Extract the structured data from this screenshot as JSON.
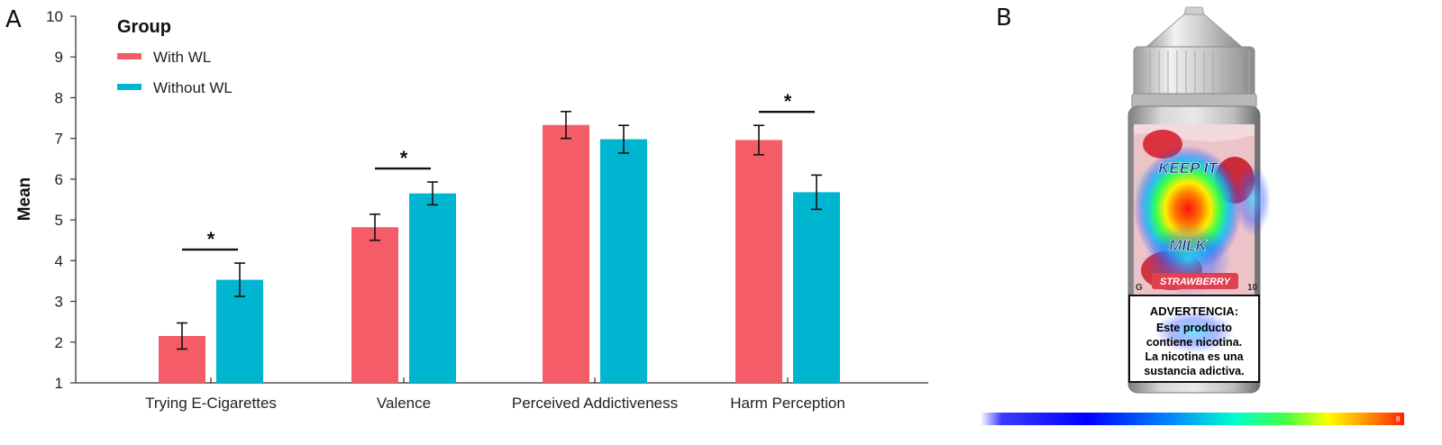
{
  "panels": {
    "a": "A",
    "b": "B"
  },
  "chart_data": {
    "type": "bar",
    "categories": [
      "Trying E-Cigarettes",
      "Valence",
      "Perceived Addictiveness",
      "Harm Perception"
    ],
    "series": [
      {
        "name": "With WL",
        "color": "#f45d68",
        "values": [
          2.15,
          4.82,
          7.33,
          6.96
        ],
        "error": [
          0.32,
          0.32,
          0.33,
          0.36
        ]
      },
      {
        "name": "Without WL",
        "color": "#00b5cf",
        "values": [
          3.53,
          5.65,
          6.98,
          5.68
        ],
        "error": [
          0.41,
          0.28,
          0.34,
          0.42
        ]
      }
    ],
    "significance": [
      {
        "category": "Trying E-Cigarettes",
        "label": "*"
      },
      {
        "category": "Valence",
        "label": "*"
      },
      {
        "category": "Harm Perception",
        "label": "*"
      }
    ],
    "ylabel": "Mean",
    "ylim": [
      1,
      10
    ],
    "yticks": [
      1,
      2,
      3,
      4,
      5,
      6,
      7,
      8,
      9,
      10
    ],
    "legend": {
      "title": "Group",
      "placement": "top-left"
    },
    "grid": false
  },
  "image_panel": {
    "label": {
      "brand_line1": "KEEP IT",
      "brand_line2": "MILK",
      "flavor": "STRAWBERRY",
      "side_left": "G",
      "side_right": "10"
    },
    "warning": {
      "title": "ADVERTENCIA:",
      "lines": [
        "Este producto",
        "contiene nicotina.",
        "La nicotina es una",
        "sustancia adictiva."
      ]
    },
    "colorbar_max": "8"
  }
}
